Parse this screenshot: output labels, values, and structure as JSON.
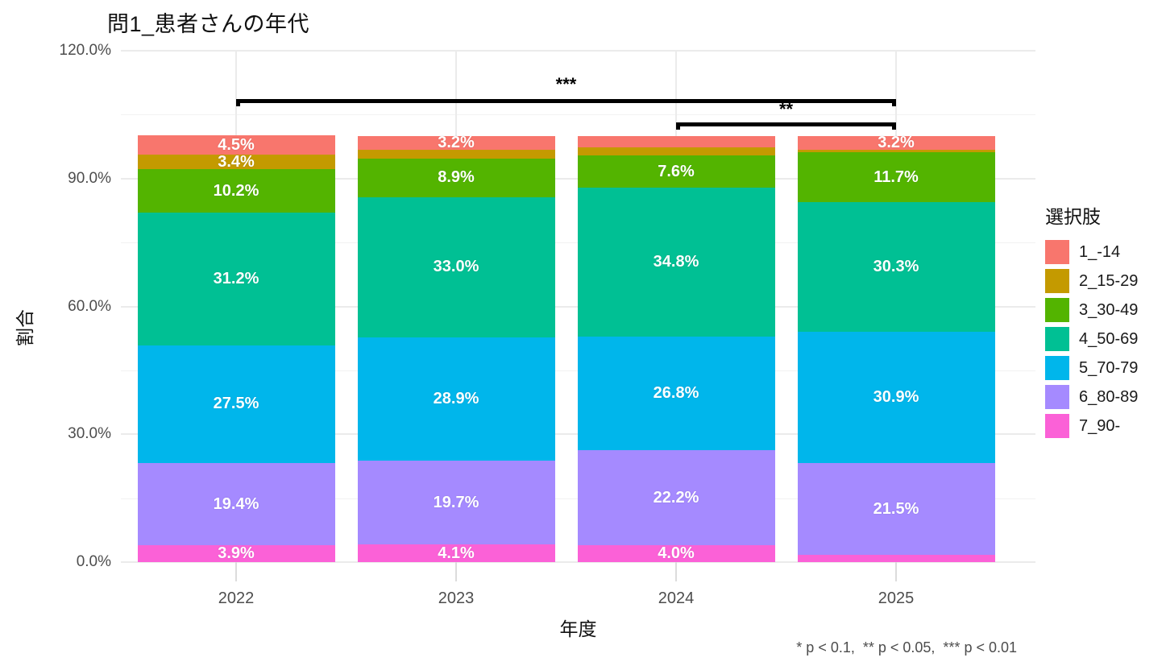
{
  "title": "問1_患者さんの年代",
  "axes": {
    "y_title": "割合",
    "x_title": "年度",
    "y_ticks": [
      {
        "label": "0.0%",
        "value": 0
      },
      {
        "label": "30.0%",
        "value": 30
      },
      {
        "label": "60.0%",
        "value": 60
      },
      {
        "label": "90.0%",
        "value": 90
      },
      {
        "label": "120.0%",
        "value": 120
      }
    ],
    "y_minor_values": [
      15,
      45,
      75,
      105
    ],
    "x_ticks": [
      "2022",
      "2023",
      "2024",
      "2025"
    ]
  },
  "legend": {
    "title": "選択肢",
    "items": [
      {
        "label": "1_-14",
        "color": "#F8766D"
      },
      {
        "label": "2_15-29",
        "color": "#C49A00"
      },
      {
        "label": "3_30-49",
        "color": "#53B400"
      },
      {
        "label": "4_50-69",
        "color": "#00C094"
      },
      {
        "label": "5_70-79",
        "color": "#00B6EB"
      },
      {
        "label": "6_80-89",
        "color": "#A58AFF"
      },
      {
        "label": "7_90-",
        "color": "#FB61D7"
      }
    ]
  },
  "significance": {
    "brackets": [
      {
        "label": "***",
        "from": "2022",
        "to": "2025"
      },
      {
        "label": "**",
        "from": "2024",
        "to": "2025"
      }
    ],
    "footnote": "* p < 0.1,  ** p < 0.05,  *** p < 0.01"
  },
  "chart_data": {
    "type": "bar",
    "stacked": true,
    "percent_scale": true,
    "title": "問1_患者さんの年代",
    "xlabel": "年度",
    "ylabel": "割合",
    "ylim": [
      0,
      120
    ],
    "grid": true,
    "legend_position": "right",
    "categories": [
      "2022",
      "2023",
      "2024",
      "2025"
    ],
    "stack_order_bottom_to_top": [
      "7_90-",
      "6_80-89",
      "5_70-79",
      "4_50-69",
      "3_30-49",
      "2_15-29",
      "1_-14"
    ],
    "series": [
      {
        "name": "1_-14",
        "color": "#F8766D",
        "values": [
          4.5,
          3.2,
          2.6,
          3.2
        ],
        "labels": [
          "4.5%",
          "3.2%",
          "",
          "3.2%"
        ]
      },
      {
        "name": "2_15-29",
        "color": "#C49A00",
        "values": [
          3.4,
          2.2,
          2.0,
          0.7
        ],
        "labels": [
          "3.4%",
          "",
          "",
          ""
        ]
      },
      {
        "name": "3_30-49",
        "color": "#53B400",
        "values": [
          10.2,
          8.9,
          7.6,
          11.7
        ],
        "labels": [
          "10.2%",
          "8.9%",
          "7.6%",
          "11.7%"
        ]
      },
      {
        "name": "4_50-69",
        "color": "#00C094",
        "values": [
          31.2,
          33.0,
          34.8,
          30.3
        ],
        "labels": [
          "31.2%",
          "33.0%",
          "34.8%",
          "30.3%"
        ]
      },
      {
        "name": "5_70-79",
        "color": "#00B6EB",
        "values": [
          27.5,
          28.9,
          26.8,
          30.9
        ],
        "labels": [
          "27.5%",
          "28.9%",
          "26.8%",
          "30.9%"
        ]
      },
      {
        "name": "6_80-89",
        "color": "#A58AFF",
        "values": [
          19.4,
          19.7,
          22.2,
          21.5
        ],
        "labels": [
          "19.4%",
          "19.7%",
          "22.2%",
          "21.5%"
        ]
      },
      {
        "name": "7_90-",
        "color": "#FB61D7",
        "values": [
          3.9,
          4.1,
          4.0,
          1.7
        ],
        "labels": [
          "3.9%",
          "4.1%",
          "4.0%",
          ""
        ]
      }
    ]
  }
}
